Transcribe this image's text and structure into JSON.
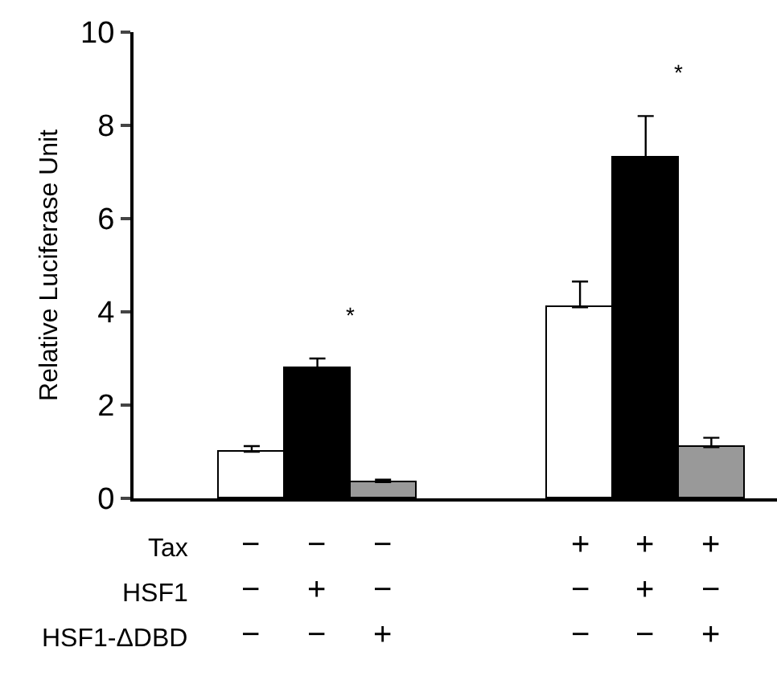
{
  "chart_data": {
    "type": "bar",
    "ylabel": "Relative Luciferase Unit",
    "categories": [
      "−\n−\n−",
      "−\n+\n−",
      "−\n−\n+",
      null,
      null,
      "+\n−\n−",
      "+\n+\n−",
      "+\n−\n+"
    ],
    "values": [
      1.0,
      2.8,
      0.35,
      null,
      null,
      4.1,
      7.3,
      1.1
    ],
    "colors": [
      "#ffffff",
      "#000000",
      "#999999",
      null,
      null,
      "#ffffff",
      "#000000",
      "#999999"
    ],
    "errors": [
      [
        1.0,
        1.12
      ],
      [
        2.8,
        3.0
      ],
      [
        0.35,
        0.4
      ],
      null,
      null,
      [
        4.1,
        4.65
      ],
      [
        7.3,
        8.2
      ],
      [
        1.1,
        1.3
      ]
    ],
    "ylim": [
      0,
      10
    ],
    "yticks": [
      0,
      2,
      4,
      6,
      8,
      10
    ],
    "annotations": [
      "Tax",
      "HSF1",
      "HSF1-ΔDBD",
      "*",
      "*"
    ]
  }
}
